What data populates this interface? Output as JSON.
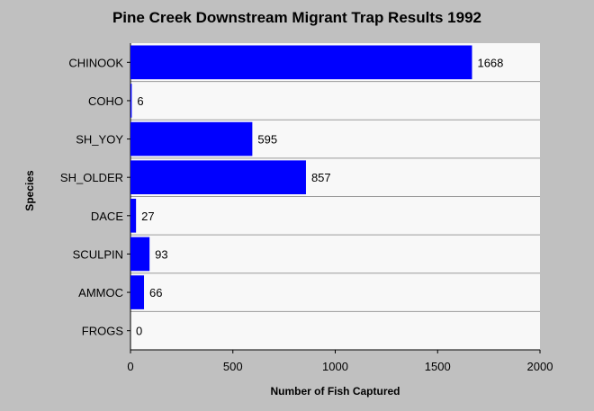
{
  "chart_data": {
    "type": "bar",
    "orientation": "horizontal",
    "title": "Pine Creek Downstream Migrant Trap Results 1992",
    "xlabel": "Number of Fish Captured",
    "ylabel": "Species",
    "categories": [
      "CHINOOK",
      "COHO",
      "SH_YOY",
      "SH_OLDER",
      "DACE",
      "SCULPIN",
      "AMMOC",
      "FROGS"
    ],
    "values": [
      1668,
      6,
      595,
      857,
      27,
      93,
      66,
      0
    ],
    "xlim": [
      0,
      2000
    ],
    "xticks": [
      0,
      500,
      1000,
      1500,
      2000
    ],
    "grid": true,
    "data_labels": true,
    "bar_color": "#0000ff",
    "plot_background": "#f8f8f8",
    "background": "#c0c0c0"
  }
}
